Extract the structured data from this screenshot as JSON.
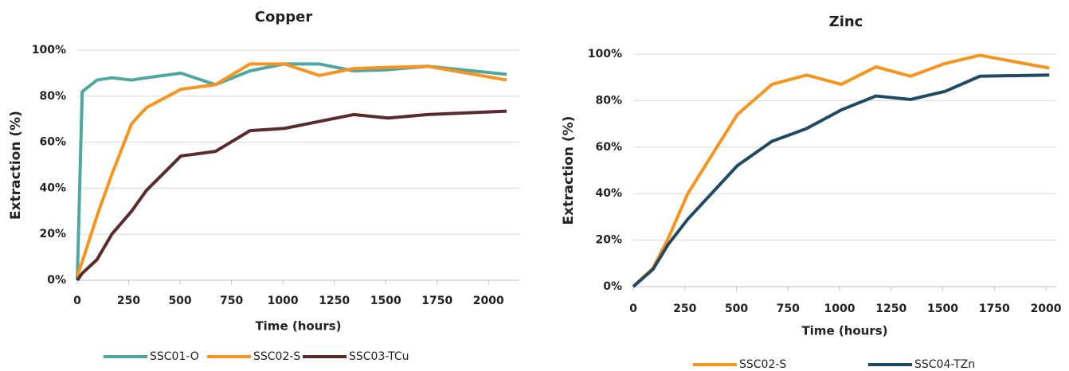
{
  "chart_data": [
    {
      "type": "line",
      "title": "Copper",
      "x_label": "Time (hours)",
      "y_label": "Extraction (%)",
      "x": [
        0,
        24,
        96,
        168,
        264,
        336,
        504,
        672,
        840,
        1008,
        1176,
        1344,
        1512,
        1704,
        2088
      ],
      "series": [
        {
          "name": "SSC01-O",
          "color": "#4fa7a2",
          "values": [
            0,
            82,
            87,
            88,
            87,
            88,
            90,
            85,
            91,
            94,
            94,
            91,
            91.5,
            93,
            89.5
          ]
        },
        {
          "name": "SSC02-S",
          "color": "#f7941d",
          "values": [
            2,
            8,
            28,
            46,
            68,
            75,
            83,
            85,
            94,
            94,
            89,
            92,
            92.5,
            93,
            87
          ]
        },
        {
          "name": "SSC03-TCu",
          "color": "#5b2a2a",
          "values": [
            0,
            3,
            9,
            20,
            30,
            39,
            54,
            56,
            65,
            66,
            69,
            72,
            70.5,
            72,
            73.5
          ]
        }
      ],
      "xlim": [
        0,
        2150
      ],
      "xticks": [
        0,
        250,
        500,
        750,
        1000,
        1250,
        1500,
        1750,
        2000
      ],
      "ylim": [
        0,
        100
      ],
      "yticks": [
        {
          "value": 0,
          "label": "0%"
        },
        {
          "value": 20,
          "label": "20%"
        },
        {
          "value": 40,
          "label": "40%"
        },
        {
          "value": 60,
          "label": "60%"
        },
        {
          "value": 80,
          "label": "80%"
        },
        {
          "value": 100,
          "label": "100%"
        }
      ],
      "grid": true,
      "legend": "bottom"
    },
    {
      "type": "line",
      "title": "Zinc",
      "x_label": "Time (hours)",
      "y_label": "Extraction (%)",
      "x": [
        0,
        96,
        168,
        264,
        504,
        672,
        840,
        1008,
        1176,
        1344,
        1512,
        1680,
        2016
      ],
      "series": [
        {
          "name": "SSC02-S",
          "color": "#f7941d",
          "values": [
            0,
            8,
            20.5,
            40,
            74,
            87,
            91,
            87,
            94.5,
            90.5,
            96,
            99.5,
            94
          ]
        },
        {
          "name": "SSC04-TZn",
          "color": "#1f4a66",
          "values": [
            0,
            7.5,
            18,
            29,
            52,
            62.5,
            68,
            76,
            82,
            80.5,
            84,
            90.5,
            91
          ]
        }
      ],
      "xlim": [
        0,
        2050
      ],
      "xticks": [
        0,
        250,
        500,
        750,
        1000,
        1250,
        1500,
        1750,
        2000
      ],
      "ylim": [
        0,
        100
      ],
      "yticks": [
        {
          "value": 0,
          "label": "0%"
        },
        {
          "value": 20,
          "label": "20%"
        },
        {
          "value": 40,
          "label": "40%"
        },
        {
          "value": 60,
          "label": "60%"
        },
        {
          "value": 80,
          "label": "80%"
        },
        {
          "value": 100,
          "label": "100%"
        }
      ],
      "grid": true,
      "legend": "bottom"
    }
  ]
}
